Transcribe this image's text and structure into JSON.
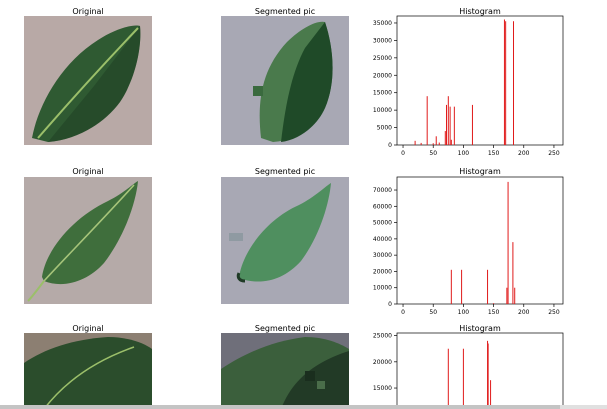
{
  "figure": {
    "rows": [
      {
        "original_title": "Original",
        "segmented_title": "Segmented pic",
        "hist_title": "Histogram"
      },
      {
        "original_title": "Original",
        "segmented_title": "Segmented pic",
        "hist_title": "Histogram"
      },
      {
        "original_title": "Original",
        "segmented_title": "Segmented pic",
        "hist_title": "Histogram"
      }
    ]
  },
  "colors": {
    "bar": "#e01b1b",
    "axis": "#000000",
    "stone_bg": "#b8a9a6",
    "segment_bg": "#a8a8b4",
    "leaf_dark": "#1f4d2a",
    "leaf_mid": "#3f7a45",
    "leaf_light": "#4f8f5f"
  },
  "chart_data": [
    {
      "type": "bar",
      "title": "Histogram",
      "xlim": [
        -10,
        265
      ],
      "ylim": [
        0,
        37000
      ],
      "xticks": [
        0,
        50,
        100,
        150,
        200,
        250
      ],
      "yticks": [
        0,
        5000,
        10000,
        15000,
        20000,
        25000,
        30000,
        35000
      ],
      "x": [
        20,
        30,
        40,
        50,
        55,
        60,
        70,
        72,
        75,
        78,
        80,
        85,
        115,
        168,
        170,
        183
      ],
      "values": [
        1200,
        600,
        14000,
        500,
        2500,
        700,
        4000,
        11500,
        14000,
        11000,
        1500,
        11000,
        11500,
        36000,
        35500,
        35500
      ]
    },
    {
      "type": "bar",
      "title": "Histogram",
      "xlim": [
        -10,
        265
      ],
      "ylim": [
        0,
        78000
      ],
      "xticks": [
        0,
        50,
        100,
        150,
        200,
        250
      ],
      "yticks": [
        0,
        10000,
        20000,
        30000,
        40000,
        50000,
        60000,
        70000
      ],
      "x": [
        80,
        97,
        140,
        150,
        172,
        174,
        182,
        185
      ],
      "values": [
        21000,
        21000,
        21000,
        500,
        10000,
        75000,
        38000,
        10000
      ]
    },
    {
      "type": "bar",
      "title": "Histogram",
      "xlim": [
        -10,
        265
      ],
      "ylim": [
        11000,
        25500
      ],
      "xticks": [],
      "yticks": [
        15000,
        20000,
        25000
      ],
      "x": [
        75,
        100,
        140,
        141,
        145
      ],
      "values": [
        22500,
        22500,
        24000,
        23500,
        16500
      ]
    }
  ]
}
